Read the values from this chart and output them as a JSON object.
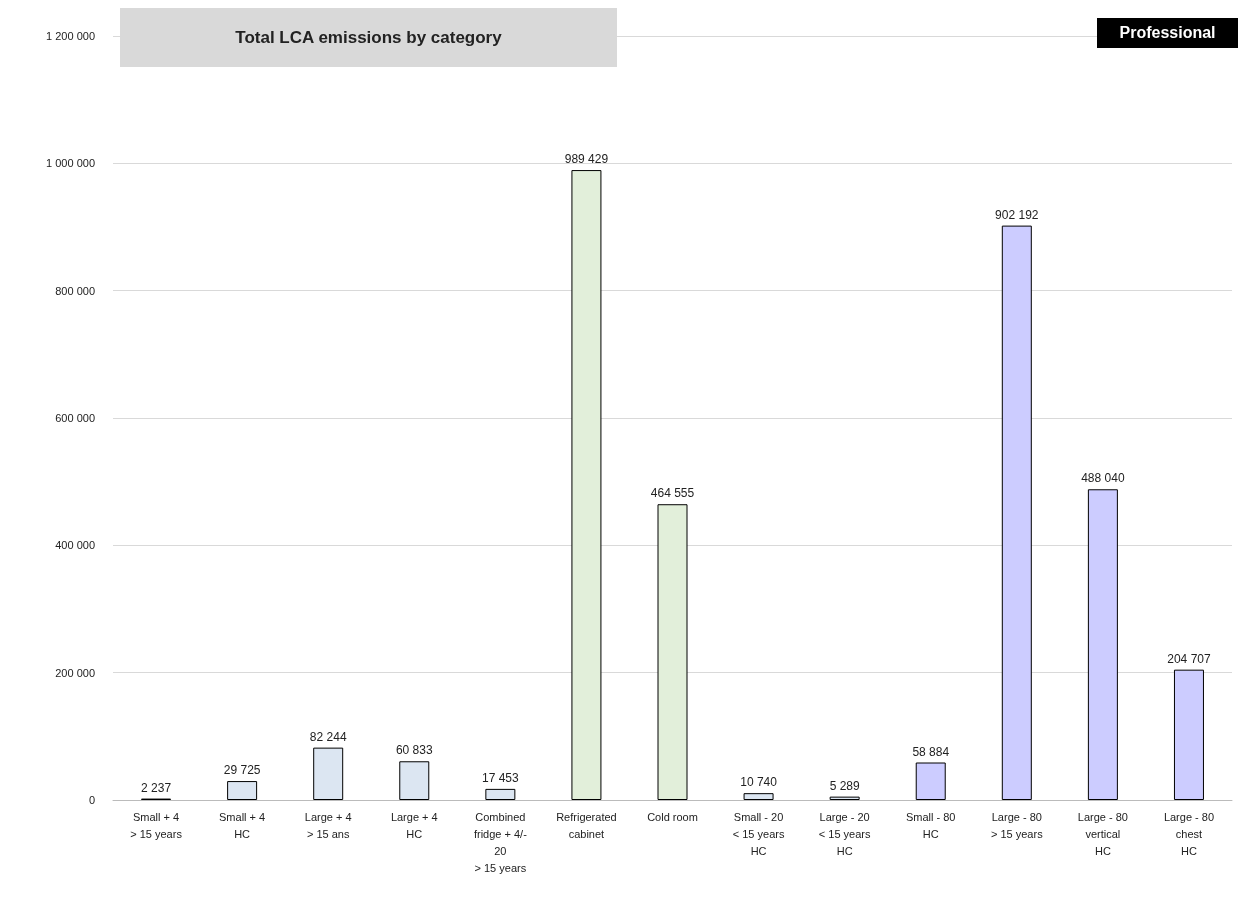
{
  "chart_data": {
    "type": "bar",
    "title": "Total LCA emissions by category",
    "annotations": [
      "Professional"
    ],
    "categories": [
      "Small + 4\n> 15 years",
      "Small + 4\nHC",
      "Large + 4\n> 15 ans",
      "Large + 4\nHC",
      "Combined\nfridge + 4/-\n20\n> 15 years",
      "Refrigerated\ncabinet",
      "Cold room",
      "Small - 20\n< 15 years\nHC",
      "Large - 20\n< 15 years\nHC",
      "Small - 80\nHC",
      "Large - 80\n> 15 years",
      "Large - 80\nvertical\nHC",
      "Large - 80\nchest\nHC"
    ],
    "values": [
      2237,
      29725,
      82244,
      60833,
      17453,
      989429,
      464555,
      10740,
      5289,
      58884,
      902192,
      488040,
      204707
    ],
    "colors": [
      "#dce6f2",
      "#dce6f2",
      "#dce6f2",
      "#dce6f2",
      "#dce6f2",
      "#e2efda",
      "#e2efda",
      "#dce6f2",
      "#dce6f2",
      "#ccccff",
      "#ccccff",
      "#ccccff",
      "#ccccff"
    ],
    "ylim": [
      0,
      1200000
    ],
    "yticks": [
      0,
      {
        "value": 200000,
        "label": "200 000"
      },
      {
        "value": 400000,
        "label": "400 000"
      },
      {
        "value": 600000,
        "label": "600 000"
      },
      {
        "value": 800000,
        "label": "800 000"
      },
      {
        "value": 1000000,
        "label": "1 000 000"
      },
      {
        "value": 1200000,
        "label": "1 200 000"
      }
    ],
    "grid": "y",
    "data_labels": true
  }
}
